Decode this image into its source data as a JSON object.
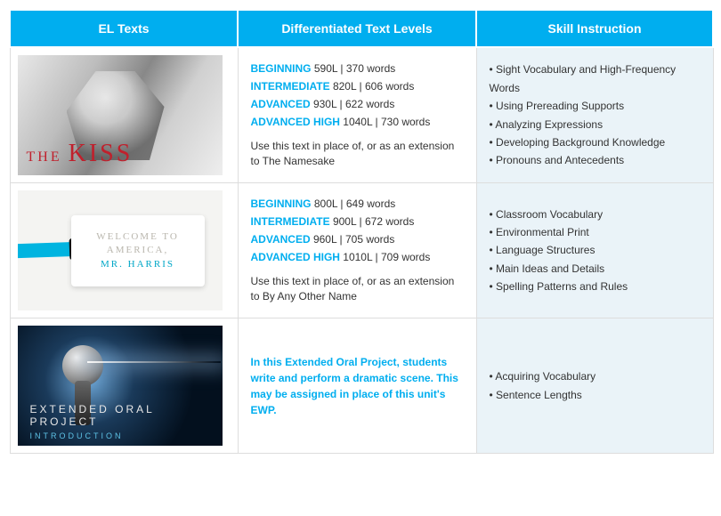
{
  "headers": [
    "EL Texts",
    "Differentiated Text Levels",
    "Skill Instruction"
  ],
  "rows": [
    {
      "thumb": {
        "kind": "kiss",
        "title_small": "THE",
        "title_big": "KISS"
      },
      "levels": [
        {
          "label": "BEGINNING",
          "val": "590L | 370 words"
        },
        {
          "label": "INTERMEDIATE",
          "val": "820L | 606 words"
        },
        {
          "label": "ADVANCED",
          "val": "930L | 622 words"
        },
        {
          "label": "ADVANCED HIGH",
          "val": "1040L | 730 words"
        }
      ],
      "note": "Use this text in place of, or as an extension to The Namesake",
      "skills": [
        "Sight Vocabulary and High-Frequency Words",
        "Using Prereading Supports",
        "Analyzing Expressions",
        "Developing Background Knowledge",
        "Pronouns and Antecedents"
      ]
    },
    {
      "thumb": {
        "kind": "welcome",
        "line1": "WELCOME TO",
        "line2": "AMERICA,",
        "line3": "MR. HARRIS"
      },
      "levels": [
        {
          "label": "BEGINNING",
          "val": "800L | 649 words"
        },
        {
          "label": "INTERMEDIATE",
          "val": "900L | 672 words"
        },
        {
          "label": "ADVANCED",
          "val": "960L | 705 words"
        },
        {
          "label": "ADVANCED HIGH",
          "val": "1010L | 709 words"
        }
      ],
      "note": "Use this text in place of, or as an extension to By Any Other Name",
      "skills": [
        "Classroom Vocabulary",
        "Environmental Print",
        "Language Structures",
        "Main Ideas and Details",
        "Spelling Patterns and Rules"
      ]
    },
    {
      "thumb": {
        "kind": "mic",
        "title": "EXTENDED ORAL PROJECT",
        "sub": "INTRODUCTION"
      },
      "desc": "In this Extended Oral Project, students write and perform a dramatic scene. This may be assigned in place of this unit's EWP.",
      "skills": [
        "Acquiring Vocabulary",
        "Sentence Lengths"
      ]
    }
  ],
  "colors": {
    "brand": "#00aeef",
    "skill_bg": "#eaf3f8",
    "kiss_red": "#c0202c"
  }
}
